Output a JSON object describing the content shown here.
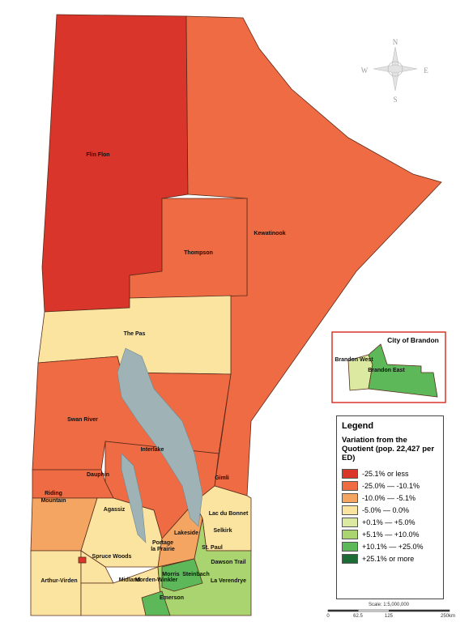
{
  "map_labels": [
    "Flin Flon",
    "Kewatinook",
    "Thompson",
    "The Pas",
    "Swan River",
    "Interlake",
    "Dauphin",
    "Gimli",
    "Riding",
    "Mountain",
    "Lac du Bonnet",
    "Agassiz",
    "Lakeside",
    "Selkirk",
    "Portage",
    "la Prairie",
    "St. Paul",
    "Spruce Woods",
    "Dawson Trail",
    "Steinbach",
    "Morris",
    "La Verendrye",
    "Midland",
    "Morden-Winkler",
    "Arthur-Virden",
    "Emerson"
  ],
  "compass": [
    "N",
    "E",
    "S",
    "W"
  ],
  "inset": {
    "title": "City of Brandon",
    "labels": [
      "Brandon West",
      "Brandon East"
    ]
  },
  "legend": {
    "title": "Legend",
    "subtitle": "Variation from the Quotient (pop. 22,427 per ED)",
    "items": [
      {
        "label": "-25.1% or less",
        "color": "#d9352a"
      },
      {
        "label": "-25.0% — -10.1%",
        "color": "#ee6b43"
      },
      {
        "label": "-10.0% — -5.1%",
        "color": "#f5a562"
      },
      {
        "label": "-5.0% — 0.0%",
        "color": "#fbe3a0"
      },
      {
        "label": "+0.1% — +5.0%",
        "color": "#dbeaa0"
      },
      {
        "label": "+5.1% — +10.0%",
        "color": "#a9d46f"
      },
      {
        "label": "+10.1% — +25.0%",
        "color": "#5db85a"
      },
      {
        "label": "+25.1% or more",
        "color": "#1d6b35"
      }
    ]
  },
  "scale_bar": {
    "label": "Scale: 1:5,000,000",
    "ticks": [
      "0",
      "62.5",
      "125",
      "250km"
    ]
  }
}
